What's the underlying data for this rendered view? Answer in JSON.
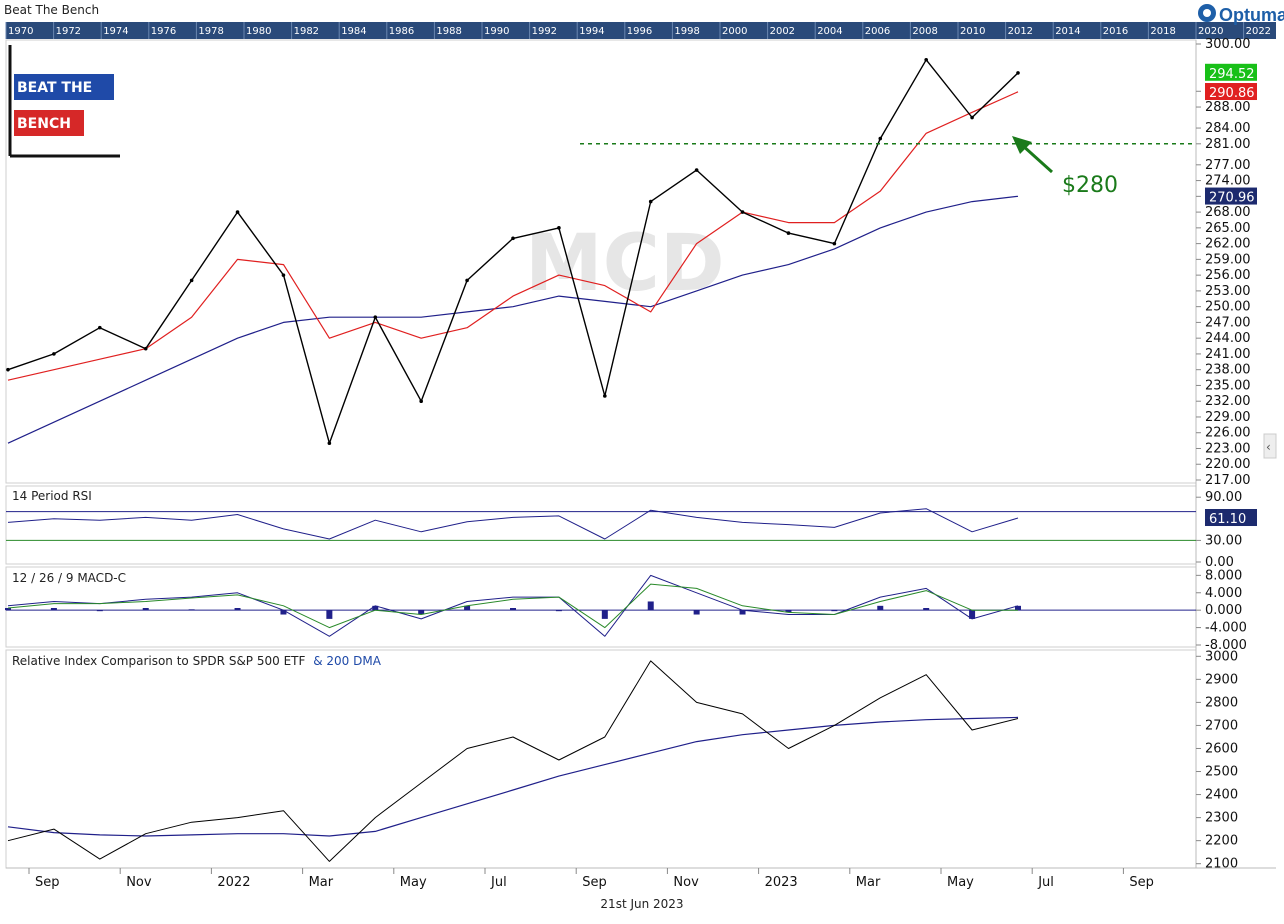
{
  "window_title": "Beat The Bench",
  "brand": {
    "name": "Optuma"
  },
  "logo": {
    "line1": "BEAT THE",
    "line2": "BENCH"
  },
  "timeline_years": [
    "1970",
    "1972",
    "1974",
    "1976",
    "1978",
    "1980",
    "1982",
    "1984",
    "1986",
    "1988",
    "1990",
    "1992",
    "1994",
    "1996",
    "1998",
    "2000",
    "2002",
    "2004",
    "2006",
    "2008",
    "2010",
    "2012",
    "2014",
    "2016",
    "2018",
    "2020",
    "2022"
  ],
  "watermark": "MCD",
  "date_footer": "21st Jun 2023",
  "x_axis": {
    "labels": [
      "Sep",
      "Nov",
      "2022",
      "Mar",
      "May",
      "Jul",
      "Sep",
      "Nov",
      "2023",
      "Mar",
      "May",
      "Jul",
      "Sep"
    ]
  },
  "colors": {
    "price": "#000000",
    "ma_fast": "#e02020",
    "ma_slow": "#20208a",
    "annotation": "#1a7a1a",
    "green_badge": "#18c018",
    "red_badge": "#e02020",
    "navy_badge": "#1c2a6e"
  },
  "chart_data": [
    {
      "type": "line",
      "panel": "price",
      "ylim": [
        217,
        300
      ],
      "yticks": [
        "217.00",
        "220.00",
        "223.00",
        "226.00",
        "229.00",
        "232.00",
        "235.00",
        "238.00",
        "241.00",
        "244.00",
        "247.00",
        "250.00",
        "253.00",
        "256.00",
        "259.00",
        "262.00",
        "265.00",
        "268.00",
        "271.00",
        "274.00",
        "277.00",
        "281.00",
        "284.00",
        "288.00",
        "291.00",
        "300.00"
      ],
      "x": [
        "2021-08",
        "2021-09",
        "2021-10",
        "2021-11",
        "2021-12",
        "2022-01",
        "2022-02",
        "2022-03",
        "2022-04",
        "2022-05",
        "2022-06",
        "2022-07",
        "2022-08",
        "2022-09",
        "2022-10",
        "2022-11",
        "2022-12",
        "2023-01",
        "2023-02",
        "2023-03",
        "2023-04",
        "2023-05",
        "2023-06"
      ],
      "series": [
        {
          "name": "price",
          "values": [
            238,
            241,
            246,
            242,
            255,
            268,
            256,
            224,
            248,
            232,
            255,
            263,
            265,
            233,
            270,
            276,
            268,
            264,
            262,
            282,
            297,
            286,
            294.5
          ]
        },
        {
          "name": "fast-ma",
          "values": [
            236,
            238,
            240,
            242,
            248,
            259,
            258,
            244,
            247,
            244,
            246,
            252,
            256,
            254,
            249,
            262,
            268,
            266,
            266,
            272,
            283,
            287,
            290.9
          ]
        },
        {
          "name": "slow-ma",
          "values": [
            224,
            228,
            232,
            236,
            240,
            244,
            247,
            248,
            248,
            248,
            249,
            250,
            252,
            251,
            250,
            253,
            256,
            258,
            261,
            265,
            268,
            270,
            271
          ]
        }
      ],
      "levels": [
        {
          "label": "$280",
          "value": 281
        }
      ],
      "badges": {
        "price": "294.52",
        "ma_fast": "290.86",
        "ma_slow": "270.96"
      }
    },
    {
      "type": "line",
      "panel": "rsi",
      "title": "14 Period RSI",
      "ylim": [
        0,
        100
      ],
      "yticks": [
        "0.00",
        "30.00",
        "90.00"
      ],
      "overbought": 70,
      "oversold": 30,
      "series": [
        {
          "name": "RSI",
          "values": [
            55,
            60,
            58,
            62,
            58,
            66,
            46,
            32,
            58,
            42,
            56,
            62,
            64,
            32,
            72,
            62,
            55,
            52,
            48,
            68,
            74,
            42,
            61.1
          ]
        }
      ],
      "badge": "61.10"
    },
    {
      "type": "bar",
      "panel": "macd",
      "title": "12 / 26 / 9 MACD-C",
      "ylim": [
        -8,
        9
      ],
      "yticks": [
        "-8.000",
        "-4.000",
        "0.000",
        "4.000",
        "8.000"
      ],
      "series": [
        {
          "name": "MACD",
          "values": [
            1,
            2,
            1.5,
            2.5,
            3,
            4,
            0,
            -6,
            1,
            -2,
            2,
            3,
            3,
            -6,
            8,
            4,
            0,
            -1,
            -1,
            3,
            5,
            -2,
            1
          ]
        },
        {
          "name": "Signal",
          "values": [
            0.5,
            1.5,
            1.5,
            2,
            2.8,
            3.5,
            1,
            -4,
            0,
            -1,
            1,
            2.5,
            3,
            -4,
            6,
            5,
            1,
            -0.5,
            -1,
            2,
            4.5,
            0,
            0
          ]
        }
      ]
    },
    {
      "type": "line",
      "panel": "relative",
      "title": "Relative Index Comparison to SPDR S&P 500 ETF",
      "title_suffix": "& 200 DMA",
      "ylim": [
        2090,
        3010
      ],
      "yticks": [
        "2100",
        "2200",
        "2300",
        "2400",
        "2500",
        "2600",
        "2700",
        "2800",
        "2900",
        "3000"
      ],
      "series": [
        {
          "name": "relative",
          "values": [
            2200,
            2250,
            2120,
            2230,
            2280,
            2300,
            2330,
            2110,
            2300,
            2450,
            2600,
            2650,
            2550,
            2650,
            2980,
            2800,
            2750,
            2600,
            2700,
            2820,
            2920,
            2680,
            2730
          ]
        },
        {
          "name": "200 DMA",
          "values": [
            2260,
            2235,
            2225,
            2220,
            2225,
            2230,
            2230,
            2220,
            2240,
            2300,
            2360,
            2420,
            2480,
            2530,
            2580,
            2630,
            2660,
            2680,
            2700,
            2715,
            2725,
            2730,
            2735
          ]
        }
      ]
    }
  ]
}
